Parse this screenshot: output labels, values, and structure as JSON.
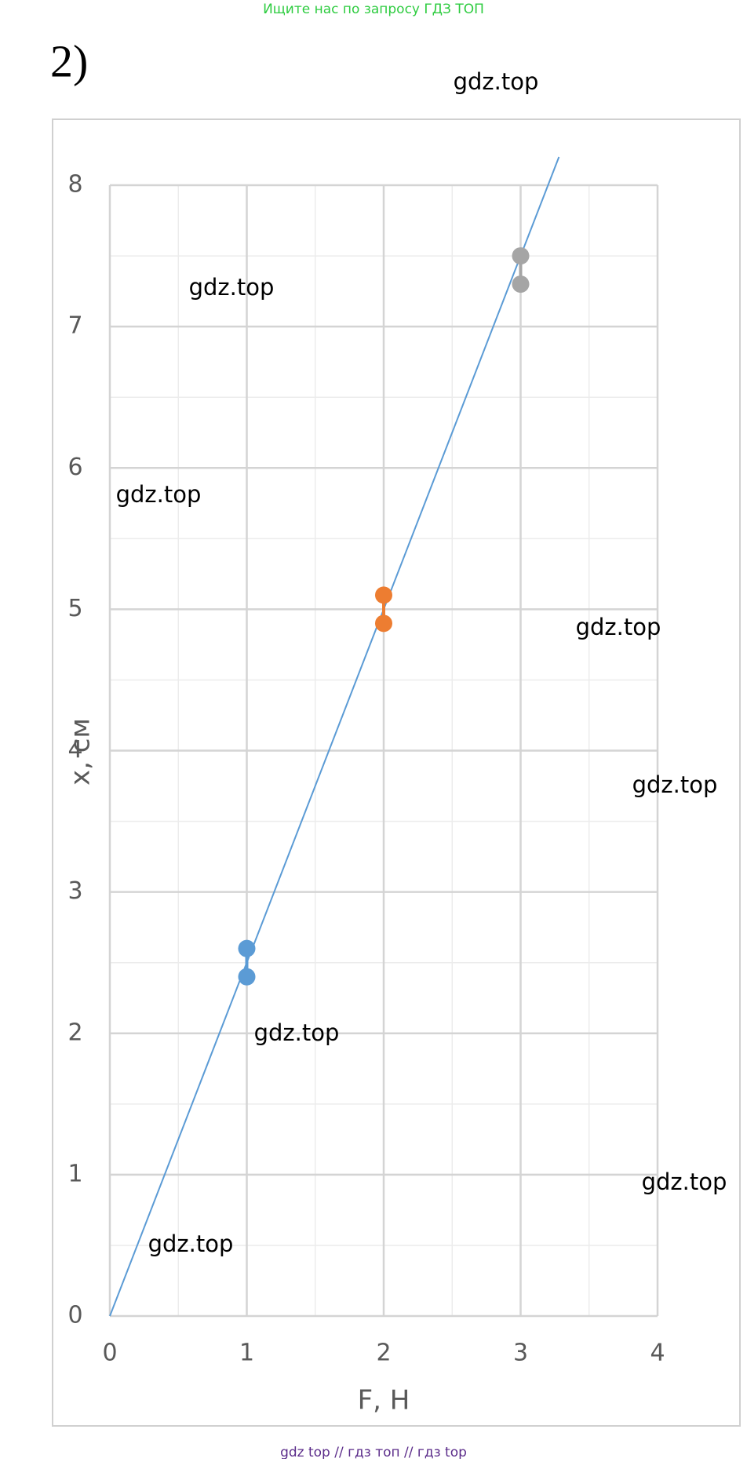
{
  "header_text": "Ищите нас по запросу ГДЗ ТОП",
  "label": "2)",
  "chart_data": {
    "type": "scatter",
    "x_label": "F, Н",
    "y_label": "x, см",
    "xlim": [
      0,
      4
    ],
    "ylim": [
      0,
      8
    ],
    "xticks": [
      0,
      1,
      2,
      3,
      4
    ],
    "yticks": [
      0,
      1,
      2,
      3,
      4,
      5,
      6,
      7,
      8
    ],
    "grid": true,
    "minor_grid": true,
    "series": [
      {
        "color": "#5b9bd5",
        "x": [
          0,
          3.28
        ],
        "values": [
          0,
          8.2
        ],
        "mode": "line"
      },
      {
        "color": "#5b9bd5",
        "x": [
          1,
          1
        ],
        "values": [
          2.6,
          2.4
        ],
        "mode": "line-markers"
      },
      {
        "color": "#ed7d31",
        "x": [
          2,
          2
        ],
        "values": [
          5.1,
          4.9
        ],
        "mode": "line-markers"
      },
      {
        "color": "#a5a5a5",
        "x": [
          3,
          3
        ],
        "values": [
          7.5,
          7.3
        ],
        "mode": "line-markers"
      }
    ]
  },
  "watermarks": [
    "gdz.top",
    "gdz.top",
    "gdz.top",
    "gdz.top",
    "gdz.top",
    "gdz.top",
    "gdz.top",
    "gdz.top"
  ],
  "footer": "gdz top  //  гдз топ  //  гдз top"
}
